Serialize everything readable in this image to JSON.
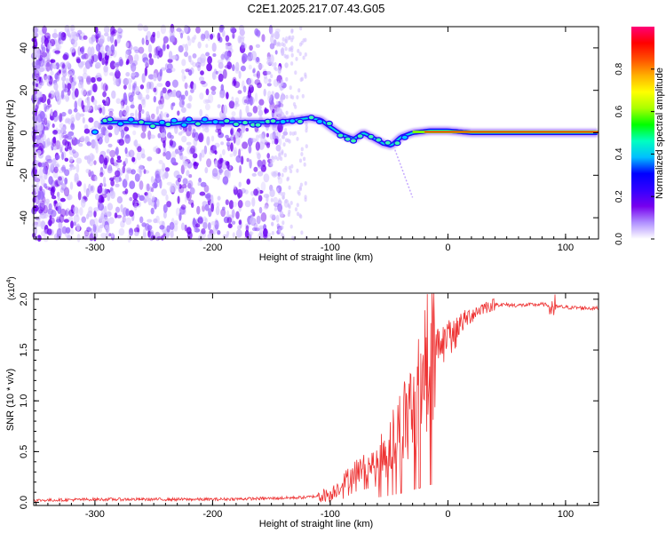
{
  "title": "C2E1.2025.217.07.43.G05",
  "chart_data": [
    {
      "type": "heatmap",
      "xlabel": "Height of straight line (km)",
      "ylabel": "Frequency (Hz)",
      "xlim": [
        -352,
        128
      ],
      "ylim": [
        -50,
        50
      ],
      "xticks": [
        -300,
        -200,
        -100,
        0,
        100
      ],
      "yticks": [
        -40,
        -20,
        0,
        20,
        40
      ],
      "colorbar": {
        "label": "Normalized spectral amplitude",
        "range": [
          0,
          1
        ],
        "ticks": [
          "0.0",
          "0.2",
          "0.4",
          "0.6",
          "0.8"
        ],
        "colors": [
          "#ffffff",
          "#b090ff",
          "#7700ee",
          "#3300ff",
          "#0000ff",
          "#00bfff",
          "#00ffc0",
          "#00ff00",
          "#aaff00",
          "#ffff00",
          "#ffb000",
          "#ff5000",
          "#ff0000",
          "#ff0077"
        ]
      },
      "main_track": [
        {
          "x": -295,
          "y": 5
        },
        {
          "x": -270,
          "y": 5
        },
        {
          "x": -240,
          "y": 4
        },
        {
          "x": -220,
          "y": 5
        },
        {
          "x": -190,
          "y": 5
        },
        {
          "x": -160,
          "y": 5
        },
        {
          "x": -145,
          "y": 5
        },
        {
          "x": -130,
          "y": 6
        },
        {
          "x": -118,
          "y": 7
        },
        {
          "x": -108,
          "y": 6
        },
        {
          "x": -98,
          "y": 2
        },
        {
          "x": -90,
          "y": -1
        },
        {
          "x": -80,
          "y": -3
        },
        {
          "x": -72,
          "y": 0
        },
        {
          "x": -65,
          "y": -2
        },
        {
          "x": -55,
          "y": -5
        },
        {
          "x": -48,
          "y": -6
        },
        {
          "x": -40,
          "y": -2
        },
        {
          "x": -30,
          "y": 0
        },
        {
          "x": -15,
          "y": 1
        },
        {
          "x": 0,
          "y": 1
        },
        {
          "x": 20,
          "y": 0
        },
        {
          "x": 60,
          "y": 0
        },
        {
          "x": 100,
          "y": 0
        },
        {
          "x": 128,
          "y": 0
        }
      ]
    },
    {
      "type": "line",
      "xlabel": "Height of straight line (km)",
      "ylabel": "SNR (10 * v/v)",
      "y_multiplier": "(x10^4)",
      "y_multiplier_base": "(x10",
      "y_multiplier_exp": "4",
      "xlim": [
        -352,
        128
      ],
      "ylim": [
        -0.03,
        2.06
      ],
      "xticks": [
        -300,
        -200,
        -100,
        0,
        100
      ],
      "yticks": [
        "0.0",
        "0.5",
        "1.0",
        "1.5",
        "2.0"
      ],
      "series": [
        {
          "color": "#ee3333",
          "x": [
            -352,
            -300,
            -250,
            -200,
            -150,
            -120,
            -100,
            -90,
            -80,
            -70,
            -60,
            -50,
            -40,
            -30,
            -20,
            -10,
            0,
            10,
            20,
            30,
            40,
            60,
            80,
            90,
            100,
            128
          ],
          "y": [
            0.02,
            0.03,
            0.03,
            0.03,
            0.04,
            0.05,
            0.08,
            0.18,
            0.3,
            0.35,
            0.4,
            0.55,
            0.75,
            1.0,
            1.3,
            1.55,
            1.65,
            1.75,
            1.85,
            1.92,
            1.95,
            1.94,
            1.95,
            1.93,
            1.92,
            1.91
          ]
        }
      ]
    }
  ]
}
